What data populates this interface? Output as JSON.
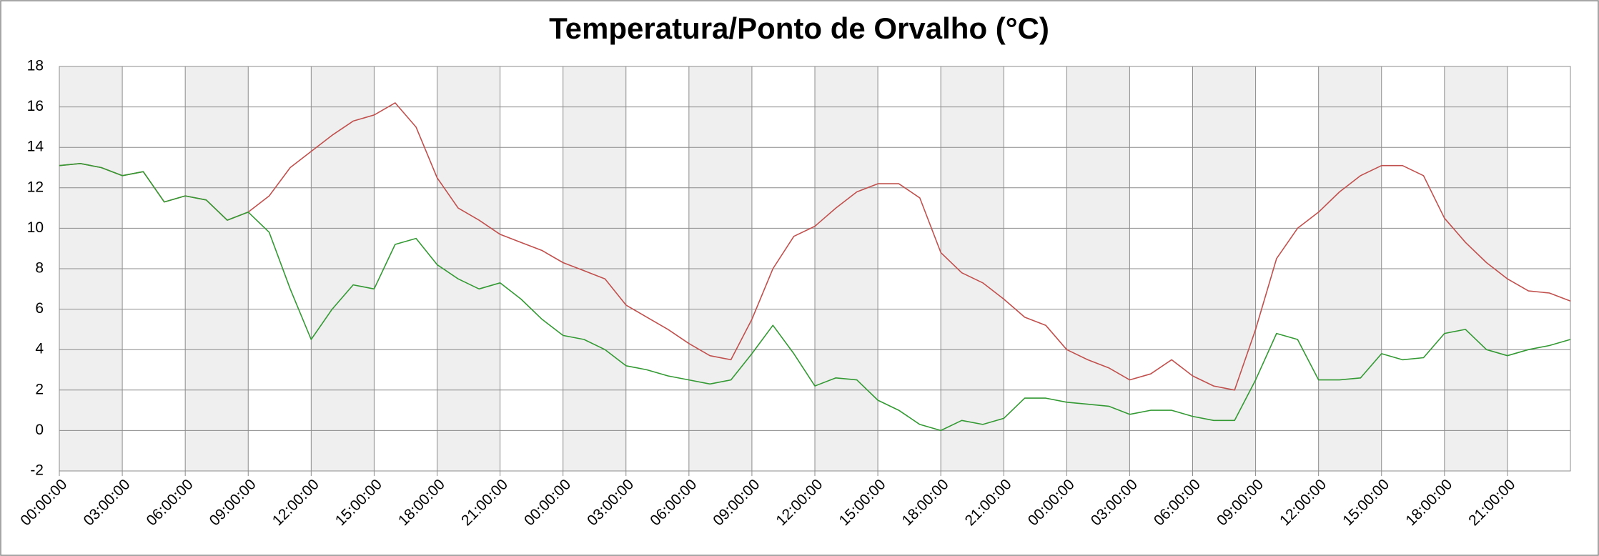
{
  "chart_data": {
    "type": "line",
    "title": "Temperatura/Ponto de Orvalho (°C)",
    "x": [
      0,
      1,
      2,
      3,
      4,
      5,
      6,
      7,
      8,
      9,
      10,
      11,
      12,
      13,
      14,
      15,
      16,
      17,
      18,
      19,
      20,
      21,
      22,
      23,
      24,
      25,
      26,
      27,
      28,
      29,
      30,
      31,
      32,
      33,
      34,
      35,
      36,
      37,
      38,
      39,
      40,
      41,
      42,
      43,
      44,
      45,
      46,
      47,
      48,
      49,
      50,
      51,
      52,
      53,
      54,
      55,
      56,
      57,
      58,
      59,
      60,
      61,
      62,
      63,
      64,
      65,
      66,
      67,
      68,
      69,
      70,
      71,
      72
    ],
    "series": [
      {
        "color": "#c0504d",
        "values": [
          13.1,
          13.2,
          13.0,
          12.6,
          12.8,
          11.3,
          11.6,
          11.4,
          10.4,
          10.8,
          11.6,
          13.0,
          13.8,
          14.6,
          15.3,
          15.6,
          16.2,
          15.0,
          12.5,
          11.0,
          10.4,
          9.7,
          9.3,
          8.9,
          8.3,
          7.9,
          7.5,
          6.2,
          5.6,
          5.0,
          4.3,
          3.7,
          3.5,
          5.5,
          8.0,
          9.6,
          10.1,
          11.0,
          11.8,
          12.2,
          12.2,
          11.5,
          8.8,
          7.8,
          7.3,
          6.5,
          5.6,
          5.2,
          4.0,
          3.5,
          3.1,
          2.5,
          2.8,
          3.5,
          2.7,
          2.2,
          2.0,
          5.0,
          8.5,
          10.0,
          10.8,
          11.8,
          12.6,
          13.1,
          13.1,
          12.6,
          10.5,
          9.3,
          8.3,
          7.5,
          6.9,
          6.8,
          6.4
        ]
      },
      {
        "color": "#339933",
        "values": [
          13.1,
          13.2,
          13.0,
          12.6,
          12.8,
          11.3,
          11.6,
          11.4,
          10.4,
          10.8,
          9.8,
          7.0,
          4.5,
          6.0,
          7.2,
          7.0,
          9.2,
          9.5,
          8.2,
          7.5,
          7.0,
          7.3,
          6.5,
          5.5,
          4.7,
          4.5,
          4.0,
          3.2,
          3.0,
          2.7,
          2.5,
          2.3,
          2.5,
          3.8,
          5.2,
          3.8,
          2.2,
          2.6,
          2.5,
          1.5,
          1.0,
          0.3,
          0.0,
          0.5,
          0.3,
          0.6,
          1.6,
          1.6,
          1.4,
          1.3,
          1.2,
          0.8,
          1.0,
          1.0,
          0.7,
          0.5,
          0.5,
          2.5,
          4.8,
          4.5,
          2.5,
          2.5,
          2.6,
          3.8,
          3.5,
          3.6,
          4.8,
          5.0,
          4.0,
          3.7,
          4.0,
          4.2,
          4.5
        ]
      }
    ],
    "xlim": [
      0,
      72
    ],
    "xticks": [
      {
        "value": 0,
        "label": "00:00:00"
      },
      {
        "value": 3,
        "label": "03:00:00"
      },
      {
        "value": 6,
        "label": "06:00:00"
      },
      {
        "value": 9,
        "label": "09:00:00"
      },
      {
        "value": 12,
        "label": "12:00:00"
      },
      {
        "value": 15,
        "label": "15:00:00"
      },
      {
        "value": 18,
        "label": "18:00:00"
      },
      {
        "value": 21,
        "label": "21:00:00"
      },
      {
        "value": 24,
        "label": "00:00:00"
      },
      {
        "value": 27,
        "label": "03:00:00"
      },
      {
        "value": 30,
        "label": "06:00:00"
      },
      {
        "value": 33,
        "label": "09:00:00"
      },
      {
        "value": 36,
        "label": "12:00:00"
      },
      {
        "value": 39,
        "label": "15:00:00"
      },
      {
        "value": 42,
        "label": "18:00:00"
      },
      {
        "value": 45,
        "label": "21:00:00"
      },
      {
        "value": 48,
        "label": "00:00:00"
      },
      {
        "value": 51,
        "label": "03:00:00"
      },
      {
        "value": 54,
        "label": "06:00:00"
      },
      {
        "value": 57,
        "label": "09:00:00"
      },
      {
        "value": 60,
        "label": "12:00:00"
      },
      {
        "value": 63,
        "label": "15:00:00"
      },
      {
        "value": 66,
        "label": "18:00:00"
      },
      {
        "value": 69,
        "label": "21:00:00"
      }
    ],
    "ylim": [
      -2,
      18
    ],
    "yticks": [
      -2,
      0,
      2,
      4,
      6,
      8,
      10,
      12,
      14,
      16,
      18
    ],
    "grid": true,
    "shaded_bands": true
  }
}
